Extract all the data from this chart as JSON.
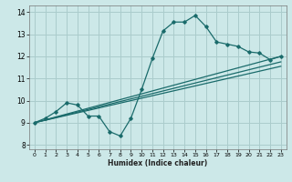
{
  "xlabel": "Humidex (Indice chaleur)",
  "background_color": "#cce8e8",
  "grid_color": "#aacccc",
  "line_color": "#1a6b6b",
  "xlim": [
    -0.5,
    23.5
  ],
  "ylim": [
    7.8,
    14.3
  ],
  "yticks": [
    8,
    9,
    10,
    11,
    12,
    13,
    14
  ],
  "xticks": [
    0,
    1,
    2,
    3,
    4,
    5,
    6,
    7,
    8,
    9,
    10,
    11,
    12,
    13,
    14,
    15,
    16,
    17,
    18,
    19,
    20,
    21,
    22,
    23
  ],
  "curve_x": [
    0,
    1,
    2,
    3,
    4,
    5,
    6,
    7,
    8,
    9,
    10,
    11,
    12,
    13,
    14,
    15,
    16,
    17,
    18,
    19,
    20,
    21,
    22,
    23
  ],
  "curve_y": [
    9.0,
    9.2,
    9.5,
    9.9,
    9.8,
    9.3,
    9.3,
    8.6,
    8.4,
    9.2,
    10.5,
    11.9,
    13.15,
    13.55,
    13.55,
    13.85,
    13.35,
    12.65,
    12.55,
    12.45,
    12.2,
    12.15,
    11.85,
    12.0
  ],
  "line1_x": [
    0,
    23
  ],
  "line1_y": [
    9.0,
    12.0
  ],
  "line2_x": [
    0,
    23
  ],
  "line2_y": [
    9.0,
    11.75
  ],
  "line3_x": [
    0,
    23
  ],
  "line3_y": [
    9.0,
    11.55
  ]
}
